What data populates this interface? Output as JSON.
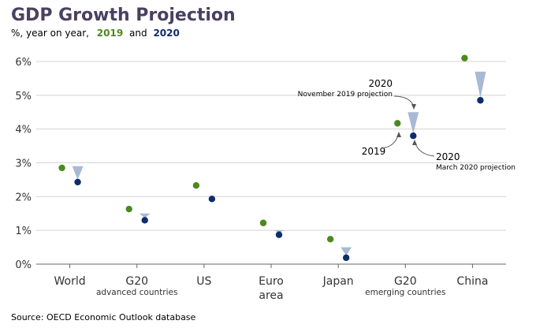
{
  "chart_data": {
    "type": "scatter",
    "title": "GDP Growth Projection",
    "subtitle_prefix": "%, year on year,",
    "subtitle_conjunction": "and",
    "series_names": [
      "2019",
      "2020"
    ],
    "ylim": [
      0,
      6
    ],
    "yticks": [
      "0%",
      "1%",
      "2%",
      "3%",
      "4%",
      "5%",
      "6%"
    ],
    "categories": [
      {
        "label": "World",
        "sublabel": ""
      },
      {
        "label": "G20",
        "sublabel": "advanced countries"
      },
      {
        "label": "US",
        "sublabel": ""
      },
      {
        "label": "Euro",
        "sublabel": "area"
      },
      {
        "label": "Japan",
        "sublabel": ""
      },
      {
        "label": "G20",
        "sublabel": "emerging countries"
      },
      {
        "label": "China",
        "sublabel": ""
      }
    ],
    "series": [
      {
        "name": "2019",
        "values": [
          2.85,
          1.63,
          2.33,
          1.22,
          0.74,
          4.17,
          6.1
        ]
      },
      {
        "name": "2020 (March 2020 projection)",
        "values": [
          2.43,
          1.3,
          1.93,
          0.87,
          0.19,
          3.8,
          4.85
        ]
      },
      {
        "name": "2020 (November 2019 projection)",
        "values": [
          2.9,
          1.5,
          2.0,
          1.0,
          0.5,
          4.5,
          5.7
        ]
      }
    ],
    "annotations": {
      "nov_label_year": "2020",
      "nov_label_desc": "November 2019 projection",
      "mar_label_year": "2020",
      "mar_label_desc": "March 2020 projection",
      "label_2019": "2019"
    },
    "colors": {
      "green": "#4a8a1e",
      "navy": "#0d2d6b",
      "triangle": "#a8b9d5",
      "title": "#4a4060",
      "grid": "#d4d4d4",
      "axis": "#666666"
    }
  },
  "source": "Source: OECD Economic Outlook database"
}
